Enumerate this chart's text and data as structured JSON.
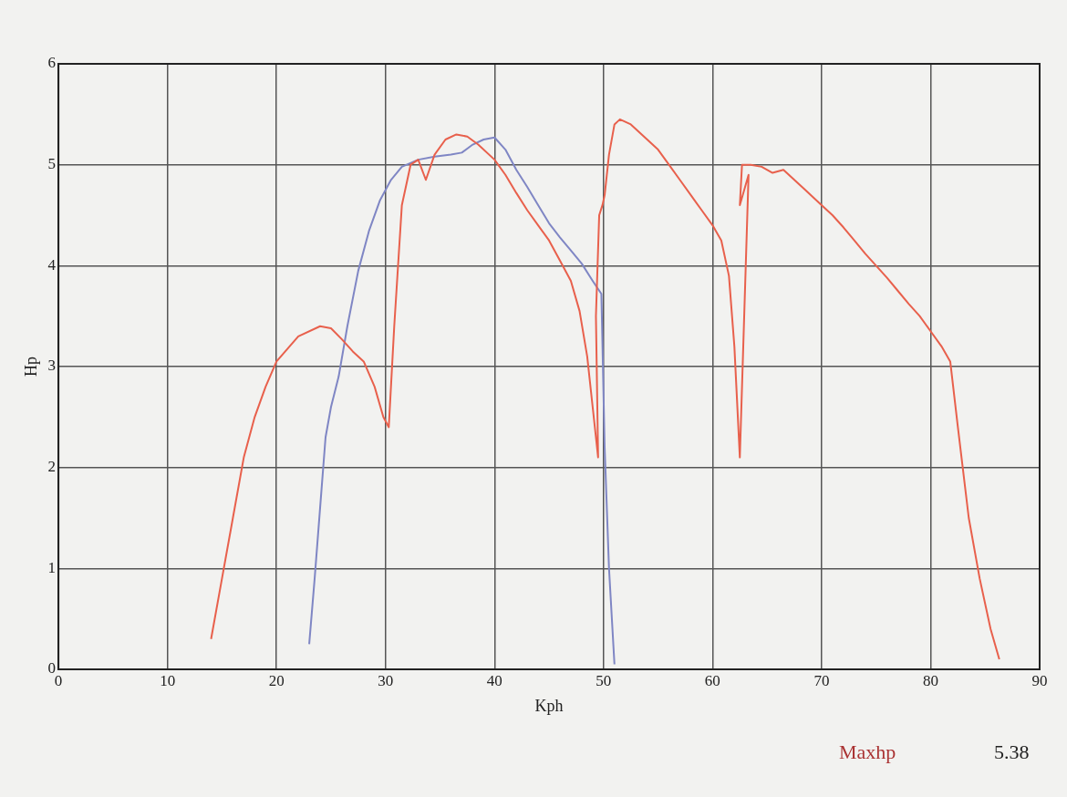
{
  "chart_data": {
    "type": "line",
    "xlabel": "Kph",
    "ylabel": "Hp",
    "xlim": [
      0,
      90
    ],
    "xticks": [
      0,
      10,
      20,
      30,
      40,
      50,
      60,
      70,
      80,
      90
    ],
    "ylim": [
      0,
      6
    ],
    "yticks": [
      0,
      1,
      2,
      3,
      4,
      5,
      6
    ],
    "grid": true,
    "legend": false,
    "marker": "none",
    "line_style": "solid",
    "annotations": [
      "Maxhp",
      "5.38"
    ],
    "series": [
      {
        "color": "#e8604c",
        "x": [
          14,
          15,
          16,
          17,
          18,
          19,
          20,
          22,
          24,
          25,
          26,
          27,
          28,
          29,
          29.8,
          30.3,
          30.8,
          31.5,
          32.3,
          33,
          33.7,
          34.5,
          35.5,
          36.5,
          37.5,
          38.5,
          40,
          41,
          42,
          43,
          44,
          45,
          46,
          47,
          47.8,
          48.5,
          49,
          49.5,
          49.3,
          49.6,
          49.9,
          50.1,
          50.5,
          51,
          51.5,
          52.5,
          53.5,
          55,
          56,
          57,
          58,
          59,
          60,
          60.8,
          61.5,
          62,
          62.5,
          63.3,
          62.5,
          62.7,
          63.5,
          64.5,
          65.5,
          66.5,
          67.5,
          68.5,
          70,
          71,
          72,
          73,
          74,
          75,
          76,
          77,
          78,
          79,
          80,
          81,
          81.8,
          82.5,
          83.5,
          84.5,
          85.5,
          86.3
        ],
        "values": [
          0.3,
          0.9,
          1.5,
          2.1,
          2.5,
          2.8,
          3.05,
          3.3,
          3.4,
          3.38,
          3.27,
          3.15,
          3.05,
          2.8,
          2.5,
          2.4,
          3.4,
          4.6,
          5.0,
          5.05,
          4.85,
          5.1,
          5.25,
          5.3,
          5.28,
          5.2,
          5.05,
          4.9,
          4.72,
          4.55,
          4.4,
          4.25,
          4.05,
          3.85,
          3.55,
          3.1,
          2.6,
          2.1,
          3.5,
          4.5,
          4.6,
          4.7,
          5.1,
          5.4,
          5.45,
          5.4,
          5.3,
          5.15,
          5.0,
          4.85,
          4.7,
          4.55,
          4.4,
          4.25,
          3.9,
          3.2,
          2.1,
          4.9,
          4.6,
          5.0,
          5.0,
          4.98,
          4.92,
          4.95,
          4.85,
          4.75,
          4.6,
          4.5,
          4.38,
          4.25,
          4.12,
          4.0,
          3.88,
          3.75,
          3.62,
          3.5,
          3.35,
          3.2,
          3.05,
          2.4,
          1.5,
          0.9,
          0.4,
          0.1
        ]
      },
      {
        "color": "#7f86c4",
        "x": [
          23,
          23.5,
          24,
          24.5,
          25,
          25.7,
          26.5,
          27.5,
          28.5,
          29.5,
          30.5,
          31.5,
          33,
          34.5,
          36,
          37,
          38,
          39,
          40,
          41,
          42,
          43,
          44,
          45,
          46,
          47,
          48,
          49,
          49.8,
          50.1,
          50.5,
          51
        ],
        "values": [
          0.25,
          0.9,
          1.6,
          2.3,
          2.6,
          2.9,
          3.4,
          3.95,
          4.35,
          4.65,
          4.85,
          4.98,
          5.05,
          5.08,
          5.1,
          5.12,
          5.2,
          5.25,
          5.27,
          5.15,
          4.95,
          4.78,
          4.6,
          4.42,
          4.28,
          4.15,
          4.02,
          3.85,
          3.72,
          2.2,
          1.0,
          0.05
        ]
      }
    ]
  }
}
